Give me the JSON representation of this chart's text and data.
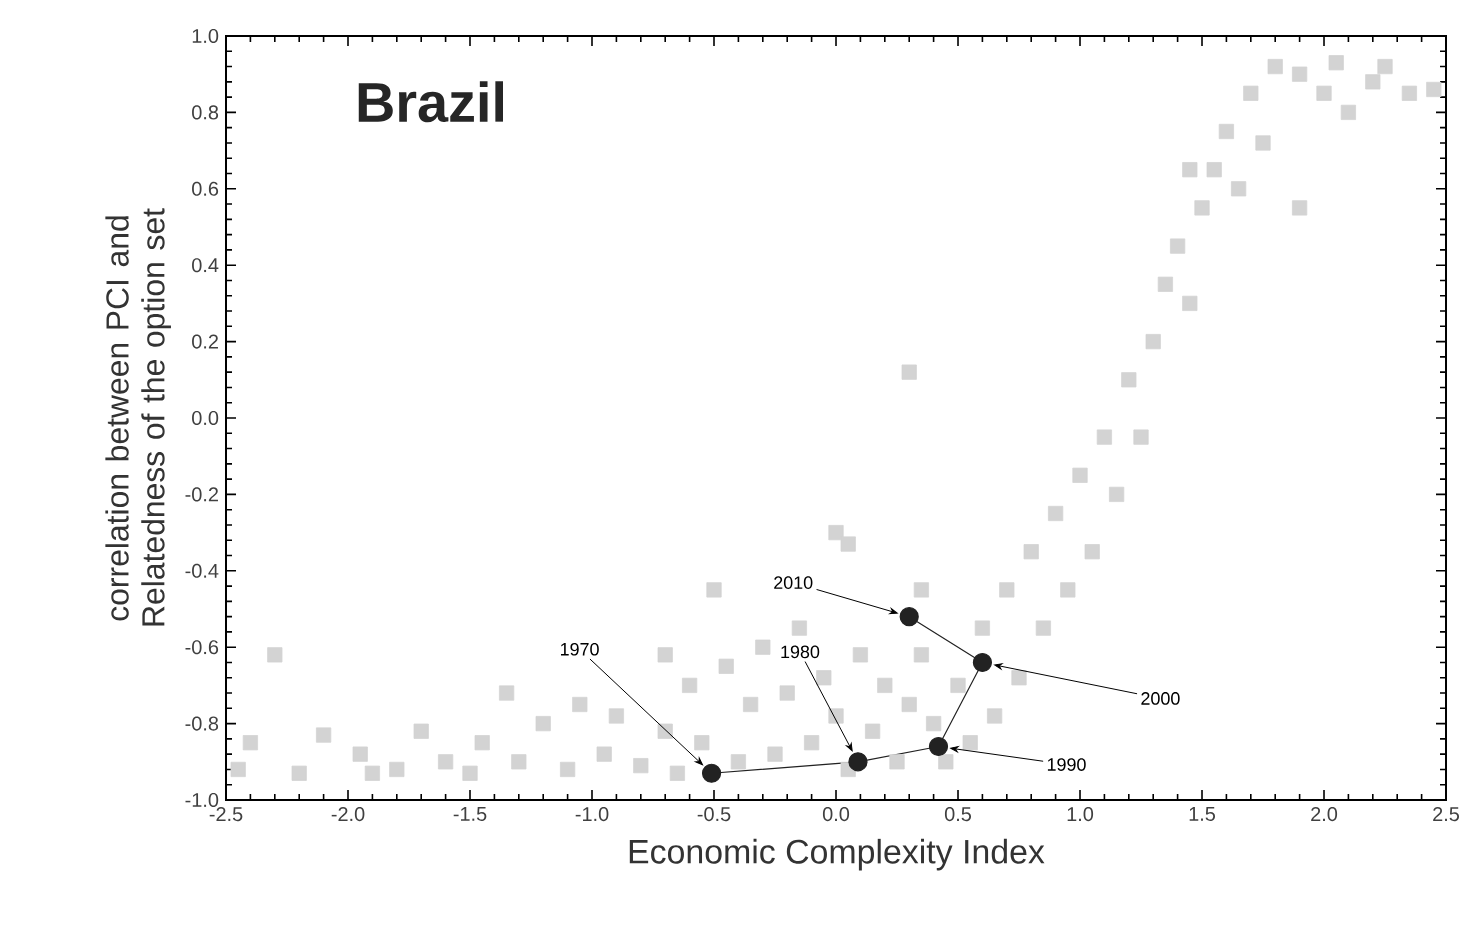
{
  "chart_data": {
    "type": "scatter",
    "title": "Brazil",
    "xlabel": "Economic Complexity Index",
    "ylabel": "correlation between PCI and Relatedness of the option set",
    "xlim": [
      -2.5,
      2.5
    ],
    "ylim": [
      -1.0,
      1.0
    ],
    "xticks": [
      {
        "value": -2.5,
        "label": "-2.5"
      },
      {
        "value": -2,
        "label": "-2.0"
      },
      {
        "value": -1.5,
        "label": "-1.5"
      },
      {
        "value": -1,
        "label": "-1.0"
      },
      {
        "value": -0.5,
        "label": "-0.5"
      },
      {
        "value": 0,
        "label": "0.0"
      },
      {
        "value": 0.5,
        "label": "0.5"
      },
      {
        "value": 1,
        "label": "1.0"
      },
      {
        "value": 1.5,
        "label": "1.5"
      },
      {
        "value": 2,
        "label": "2.0"
      },
      {
        "value": 2.5,
        "label": "2.5"
      }
    ],
    "yticks": [
      {
        "value": -1,
        "label": "-1.0"
      },
      {
        "value": -0.8,
        "label": "-0.8"
      },
      {
        "value": -0.6,
        "label": "-0.6"
      },
      {
        "value": -0.4,
        "label": "-0.4"
      },
      {
        "value": -0.2,
        "label": "-0.2"
      },
      {
        "value": 0,
        "label": "0.0"
      },
      {
        "value": 0.2,
        "label": "0.2"
      },
      {
        "value": 0.4,
        "label": "0.4"
      },
      {
        "value": 0.6,
        "label": "0.6"
      },
      {
        "value": 0.8,
        "label": "0.8"
      },
      {
        "value": 1,
        "label": "1.0"
      }
    ],
    "grid": false,
    "series": [
      {
        "color": "#d3d3d3",
        "marker": "square",
        "x": [
          -2.45,
          -2.4,
          -2.3,
          -2.2,
          -2.1,
          -1.95,
          -1.9,
          -1.8,
          -1.7,
          -1.6,
          -1.5,
          -1.45,
          -1.35,
          -1.3,
          -1.2,
          -1.1,
          -1.05,
          -0.95,
          -0.9,
          -0.8,
          -0.7,
          -0.65,
          -0.6,
          -0.55,
          -0.45,
          -0.4,
          -0.35,
          -0.3,
          -0.25,
          -0.2,
          -0.15,
          -0.1,
          -0.05,
          0.0,
          0.05,
          0.0,
          0.05,
          0.1,
          0.15,
          0.2,
          0.25,
          0.3,
          0.35,
          0.35,
          0.4,
          0.45,
          0.5,
          0.55,
          0.6,
          0.65,
          0.7,
          0.75,
          0.8,
          0.85,
          0.9,
          0.95,
          1.0,
          1.05,
          1.1,
          1.15,
          1.2,
          1.25,
          1.3,
          1.35,
          1.4,
          1.45,
          1.5,
          1.55,
          1.45,
          1.6,
          1.7,
          1.65,
          1.75,
          1.8,
          1.9,
          2.0,
          2.05,
          2.1,
          2.2,
          2.25,
          2.35,
          2.45,
          0.3,
          1.9,
          -0.5,
          -0.7
        ],
        "values": [
          -0.92,
          -0.85,
          -0.62,
          -0.93,
          -0.83,
          -0.88,
          -0.93,
          -0.92,
          -0.82,
          -0.9,
          -0.93,
          -0.85,
          -0.72,
          -0.9,
          -0.8,
          -0.92,
          -0.75,
          -0.88,
          -0.78,
          -0.91,
          -0.82,
          -0.93,
          -0.7,
          -0.85,
          -0.65,
          -0.9,
          -0.75,
          -0.6,
          -0.88,
          -0.72,
          -0.55,
          -0.85,
          -0.68,
          -0.3,
          -0.33,
          -0.78,
          -0.92,
          -0.62,
          -0.82,
          -0.7,
          -0.9,
          -0.75,
          -0.45,
          -0.62,
          -0.8,
          -0.9,
          -0.7,
          -0.85,
          -0.55,
          -0.78,
          -0.45,
          -0.68,
          -0.35,
          -0.55,
          -0.25,
          -0.45,
          -0.15,
          -0.35,
          -0.05,
          -0.2,
          0.1,
          -0.05,
          0.2,
          0.35,
          0.45,
          0.3,
          0.55,
          0.65,
          0.65,
          0.75,
          0.85,
          0.6,
          0.72,
          0.92,
          0.9,
          0.85,
          0.93,
          0.8,
          0.88,
          0.92,
          0.85,
          0.86,
          0.12,
          0.55,
          -0.45,
          -0.62
        ]
      },
      {
        "type": "line",
        "color": "#222222",
        "marker": "circle",
        "x": [
          -0.51,
          0.09,
          0.42,
          0.6,
          0.3
        ],
        "values": [
          -0.93,
          -0.9,
          -0.86,
          -0.64,
          -0.52
        ]
      }
    ],
    "annotations": [
      {
        "text": "1970",
        "x": -0.51,
        "y": -0.93
      },
      {
        "text": "1980",
        "x": 0.09,
        "y": -0.9
      },
      {
        "text": "1990",
        "x": 0.42,
        "y": -0.86
      },
      {
        "text": "2000",
        "x": 0.6,
        "y": -0.64
      },
      {
        "text": "2010",
        "x": 0.3,
        "y": -0.52
      }
    ]
  }
}
